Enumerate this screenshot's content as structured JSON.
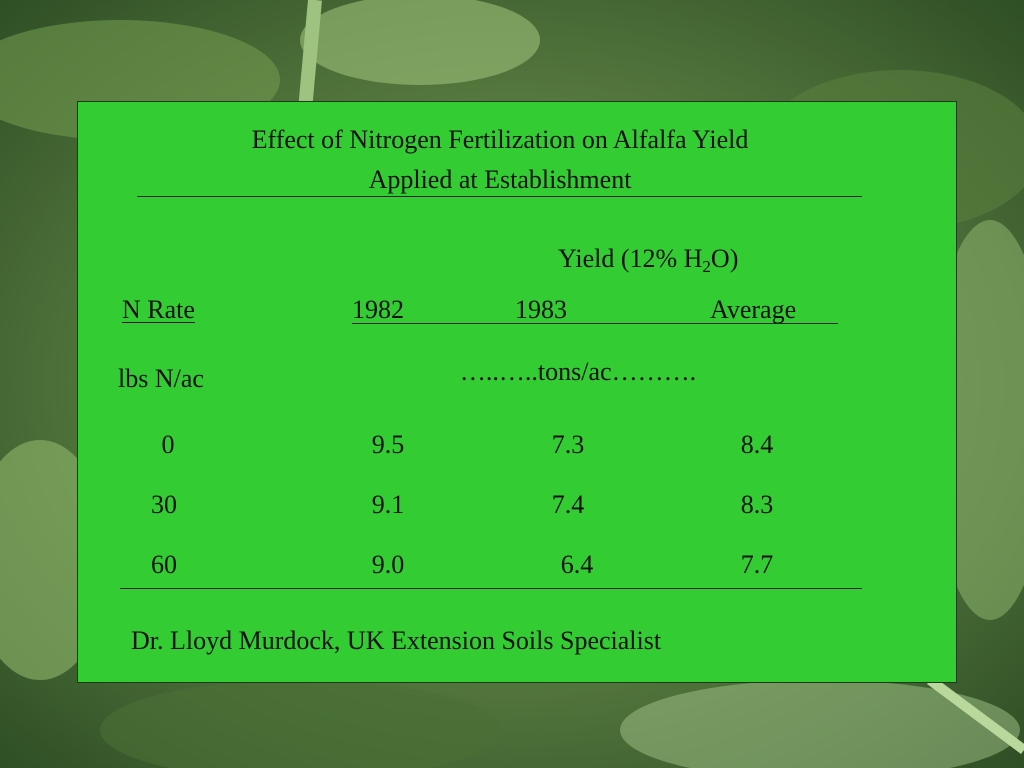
{
  "slide": {
    "title": [
      "Effect of Nitrogen Fertilization on Alfalfa Yield",
      "Applied at Establishment"
    ],
    "yield_header": {
      "prefix": "Yield (12% H",
      "subscript": "2",
      "suffix": "O)"
    },
    "table": {
      "columns": [
        "N Rate",
        "1982",
        "1983",
        "Average"
      ],
      "units": [
        "lbs N/ac",
        "…..…..tons/ac………."
      ],
      "rows": [
        [
          "0",
          "9.5",
          "7.3",
          "8.4"
        ],
        [
          "30",
          "9.1",
          "7.4",
          "8.3"
        ],
        [
          "60",
          "9.0",
          "6.4",
          "7.7"
        ]
      ]
    },
    "footer": "Dr. Lloyd Murdock, UK Extension Soils Specialist"
  }
}
